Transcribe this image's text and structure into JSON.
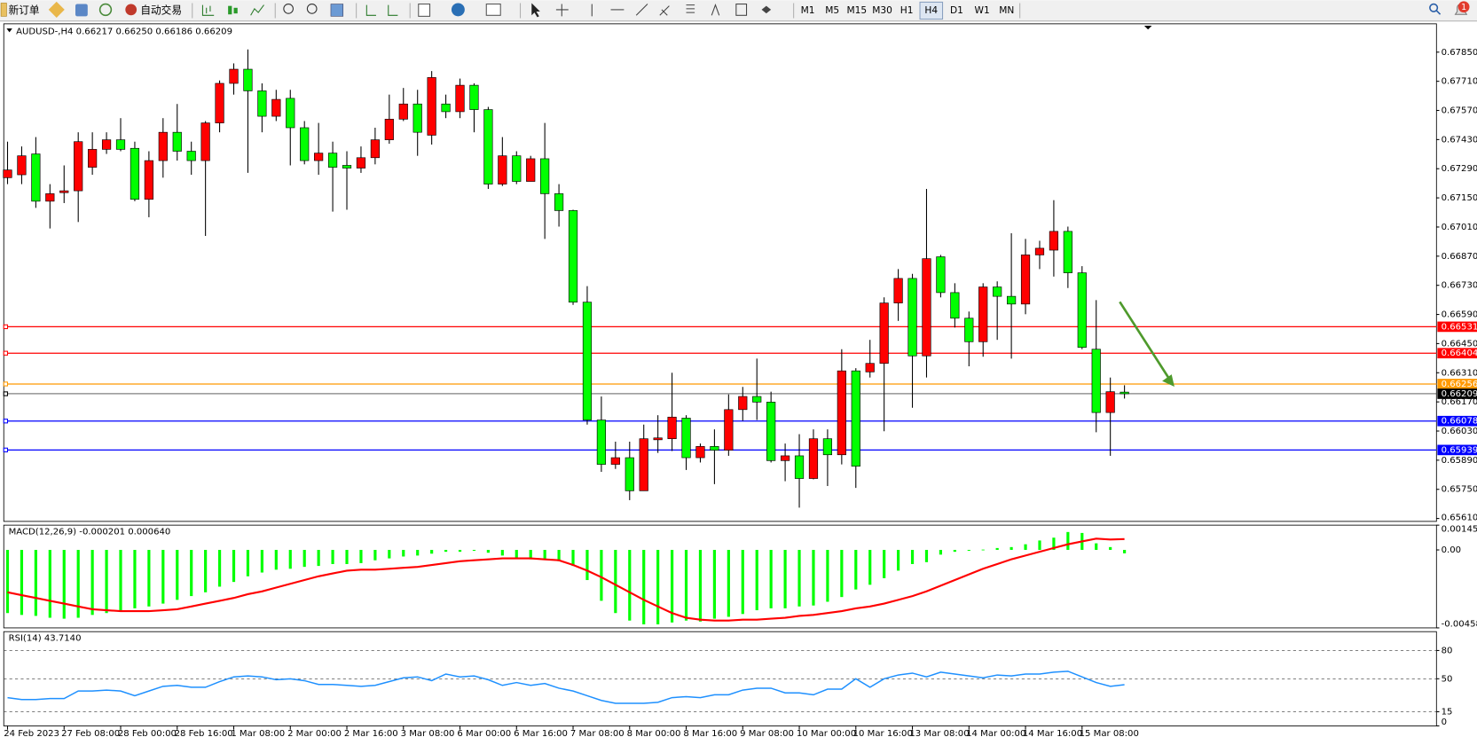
{
  "toolbar": {
    "new_order": "新订单",
    "auto_trading": "自动交易",
    "timeframes": [
      "M1",
      "M5",
      "M15",
      "M30",
      "H1",
      "H4",
      "D1",
      "W1",
      "MN"
    ],
    "selected_timeframe": "H4",
    "notifications": "1"
  },
  "chart_data": [
    {
      "type": "candlestick",
      "title": "AUDUSD-,H4 0.66217 0.66250 0.66186 0.66209",
      "categories": [
        "24 Feb 2023",
        null,
        null,
        null,
        "27 Feb 08:00",
        null,
        null,
        null,
        "28 Feb 00:00",
        null,
        null,
        null,
        "28 Feb 16:00",
        null,
        null,
        null,
        "1 Mar 08:00",
        null,
        null,
        null,
        "2 Mar 00:00",
        null,
        null,
        null,
        "2 Mar 16:00",
        null,
        null,
        null,
        "3 Mar 08:00",
        null,
        null,
        null,
        "6 Mar 00:00",
        null,
        null,
        null,
        "6 Mar 16:00",
        null,
        null,
        null,
        "7 Mar 08:00",
        null,
        null,
        null,
        "8 Mar 00:00",
        null,
        null,
        null,
        "8 Mar 16:00",
        null,
        null,
        null,
        "9 Mar 08:00",
        null,
        null,
        null,
        "10 Mar 00:00",
        null,
        null,
        null,
        "10 Mar 16:00",
        null,
        null,
        null,
        "13 Mar 08:00",
        null,
        null,
        null,
        "14 Mar 00:00",
        null,
        null,
        null,
        "14 Mar 16:00",
        null,
        null,
        null,
        "15 Mar 08:00",
        null,
        null,
        null
      ],
      "open": [
        0.67247,
        0.67261,
        0.67361,
        0.67134,
        0.67175,
        0.67184,
        0.67297,
        0.67383,
        0.67429,
        0.67388,
        0.67143,
        0.67329,
        0.67465,
        0.67374,
        0.67329,
        0.6751,
        0.677,
        0.67768,
        0.67664,
        0.67542,
        0.67628,
        0.67487,
        0.67329,
        0.67365,
        0.67306,
        0.67293,
        0.67343,
        0.67429,
        0.67528,
        0.67601,
        0.67451,
        0.67601,
        0.67564,
        0.67691,
        0.67574,
        0.67216,
        0.67352,
        0.67229,
        0.67338,
        0.6717,
        0.67089,
        0.66649,
        0.66083,
        0.6587,
        0.65902,
        0.65743,
        0.65988,
        0.65993,
        0.66092,
        0.65902,
        0.65956,
        0.65938,
        0.66133,
        0.66196,
        0.66169,
        0.65888,
        0.65911,
        0.65802,
        0.65993,
        0.65916,
        0.66319,
        0.66314,
        0.66355,
        0.66645,
        0.66763,
        0.66391,
        0.66867,
        0.66695,
        0.66572,
        0.66459,
        0.66722,
        0.66677,
        0.6664,
        0.66876,
        0.66899,
        0.66989,
        0.6679,
        0.66423,
        0.66119,
        0.66217
      ],
      "high": [
        0.6742,
        0.67397,
        0.67442,
        0.67216,
        0.67306,
        0.67465,
        0.67465,
        0.67465,
        0.67533,
        0.6742,
        0.67374,
        0.67533,
        0.67601,
        0.6742,
        0.67519,
        0.67714,
        0.67796,
        0.67863,
        0.677,
        0.67669,
        0.67669,
        0.67519,
        0.6751,
        0.6742,
        0.67374,
        0.67397,
        0.67487,
        0.67646,
        0.67678,
        0.67669,
        0.67759,
        0.67646,
        0.67723,
        0.677,
        0.67587,
        0.67442,
        0.67374,
        0.67352,
        0.6751,
        0.67216,
        0.67093,
        0.66726,
        0.66196,
        0.65979,
        0.65979,
        0.66061,
        0.66106,
        0.6631,
        0.66106,
        0.6597,
        0.66038,
        0.66206,
        0.66242,
        0.66378,
        0.66219,
        0.6597,
        0.66015,
        0.66038,
        0.66038,
        0.66423,
        0.66332,
        0.66468,
        0.66672,
        0.66808,
        0.66785,
        0.67193,
        0.66876,
        0.6674,
        0.66604,
        0.6674,
        0.66749,
        0.6698,
        0.66953,
        0.66944,
        0.67139,
        0.67012,
        0.66822,
        0.66659,
        0.66287,
        0.6625
      ],
      "low": [
        0.67216,
        0.67216,
        0.67102,
        0.67003,
        0.67125,
        0.67034,
        0.67261,
        0.67361,
        0.67374,
        0.67134,
        0.67057,
        0.67247,
        0.67329,
        0.67261,
        0.66967,
        0.67465,
        0.67646,
        0.6727,
        0.67465,
        0.67519,
        0.67306,
        0.67311,
        0.67261,
        0.67084,
        0.67093,
        0.6727,
        0.67311,
        0.6741,
        0.67519,
        0.67352,
        0.67406,
        0.67533,
        0.67533,
        0.67465,
        0.67193,
        0.67207,
        0.67216,
        0.67229,
        0.66953,
        0.67012,
        0.66636,
        0.66061,
        0.65834,
        0.65848,
        0.65698,
        0.65743,
        0.65925,
        0.65934,
        0.65843,
        0.65879,
        0.65775,
        0.65911,
        0.66079,
        0.66083,
        0.65879,
        0.65789,
        0.65662,
        0.65798,
        0.65766,
        0.6587,
        0.65757,
        0.66287,
        0.66029,
        0.66559,
        0.66142,
        0.66287,
        0.66672,
        0.66527,
        0.66341,
        0.66387,
        0.66468,
        0.66378,
        0.66591,
        0.66808,
        0.66772,
        0.66717,
        0.66423,
        0.66024,
        0.65911,
        0.66186
      ],
      "close": [
        0.67284,
        0.67352,
        0.67134,
        0.6717,
        0.67184,
        0.6742,
        0.67383,
        0.67429,
        0.67383,
        0.67143,
        0.67329,
        0.67465,
        0.67374,
        0.67329,
        0.6751,
        0.677,
        0.67768,
        0.67664,
        0.67542,
        0.67623,
        0.67487,
        0.67329,
        0.67365,
        0.67297,
        0.67293,
        0.67343,
        0.67429,
        0.67528,
        0.67601,
        0.67465,
        0.67728,
        0.67564,
        0.67691,
        0.67574,
        0.67216,
        0.67352,
        0.67229,
        0.67338,
        0.6717,
        0.67089,
        0.66649,
        0.66083,
        0.6587,
        0.65902,
        0.65743,
        0.65993,
        0.65997,
        0.66097,
        0.65902,
        0.65956,
        0.65938,
        0.66133,
        0.66196,
        0.66169,
        0.65888,
        0.65911,
        0.65802,
        0.65993,
        0.65916,
        0.66319,
        0.65861,
        0.66355,
        0.66645,
        0.66763,
        0.66391,
        0.66858,
        0.66695,
        0.66572,
        0.66459,
        0.66722,
        0.66677,
        0.6664,
        0.66876,
        0.66908,
        0.66989,
        0.6679,
        0.66432,
        0.66119,
        0.66219,
        0.66209
      ],
      "up_color": "#ff0000",
      "down_color": "#00ff00",
      "ylim": [
        0.65596,
        0.67986
      ],
      "yticks": [
        {
          "value": 0.6785,
          "label": "0.67850"
        },
        {
          "value": 0.6771,
          "label": "0.67710"
        },
        {
          "value": 0.6757,
          "label": "0.67570"
        },
        {
          "value": 0.6743,
          "label": "0.67430"
        },
        {
          "value": 0.6729,
          "label": "0.67290"
        },
        {
          "value": 0.6715,
          "label": "0.67150"
        },
        {
          "value": 0.6701,
          "label": "0.67010"
        },
        {
          "value": 0.6687,
          "label": "0.66870"
        },
        {
          "value": 0.6673,
          "label": "0.66730"
        },
        {
          "value": 0.6659,
          "label": "0.66590"
        },
        {
          "value": 0.6645,
          "label": "0.66450"
        },
        {
          "value": 0.6631,
          "label": "0.66310"
        },
        {
          "value": 0.6617,
          "label": "0.66170"
        },
        {
          "value": 0.6603,
          "label": "0.66030"
        },
        {
          "value": 0.6589,
          "label": "0.65890"
        },
        {
          "value": 0.6575,
          "label": "0.65750"
        },
        {
          "value": 0.6561,
          "label": "0.65610"
        }
      ],
      "hlines": [
        {
          "value": 0.66531,
          "color": "#ff0000"
        },
        {
          "value": 0.66404,
          "color": "#ff0000"
        },
        {
          "value": 0.66256,
          "color": "#ff9900"
        },
        {
          "value": 0.66209,
          "color": "#000000"
        },
        {
          "value": 0.66078,
          "color": "#0000ff"
        },
        {
          "value": 0.65939,
          "color": "#0000ff"
        }
      ]
    },
    {
      "type": "macd",
      "title": "MACD(12,26,9) -0.000201 0.000640",
      "values": [
        -0.003713,
        -0.003823,
        -0.003879,
        -0.00399,
        -0.004045,
        -0.00399,
        -0.003823,
        -0.003713,
        -0.003546,
        -0.003435,
        -0.003325,
        -0.003158,
        -0.002937,
        -0.002715,
        -0.002493,
        -0.002161,
        -0.001884,
        -0.001551,
        -0.00133,
        -0.001164,
        -0.001108,
        -0.000997,
        -0.000942,
        -0.000831,
        -0.000831,
        -0.000776,
        -0.00061,
        -0.000499,
        -0.000388,
        -0.000332,
        -0.000222,
        -0.000111,
        -0.000111,
        -5.5e-05,
        -0.000166,
        -0.000332,
        -0.000499,
        -0.000554,
        -0.000554,
        -0.000665,
        -0.000942,
        -0.001773,
        -0.002992,
        -0.003713,
        -0.004156,
        -0.004377,
        -0.004377,
        -0.004267,
        -0.004156,
        -0.004211,
        -0.004045,
        -0.003934,
        -0.003768,
        -0.003546,
        -0.003435,
        -0.003435,
        -0.003325,
        -0.003269,
        -0.003048,
        -0.002771,
        -0.002327,
        -0.00205,
        -0.001662,
        -0.001219,
        -0.000831,
        -0.00072,
        -0.000277,
        -0.000111,
        -5.5e-05,
        2e-05,
        0.000111,
        0.000166,
        0.000332,
        0.000554,
        0.00072,
        0.001053,
        0.000997,
        0.000388,
        0.000166,
        -0.000201
      ],
      "color": "#00ff00",
      "signal": [
        -0.002493,
        -0.00266,
        -0.002826,
        -0.002992,
        -0.003158,
        -0.003325,
        -0.003491,
        -0.003546,
        -0.003602,
        -0.003602,
        -0.003602,
        -0.003546,
        -0.003491,
        -0.003325,
        -0.003158,
        -0.002992,
        -0.002826,
        -0.002604,
        -0.002438,
        -0.002216,
        -0.001995,
        -0.001773,
        -0.001551,
        -0.001385,
        -0.001219,
        -0.001164,
        -0.001164,
        -0.001108,
        -0.001053,
        -0.000997,
        -0.000887,
        -0.000776,
        -0.000665,
        -0.00061,
        -0.000554,
        -0.000499,
        -0.000499,
        -0.000499,
        -0.000554,
        -0.00061,
        -0.000887,
        -0.001219,
        -0.001607,
        -0.00205,
        -0.002493,
        -0.002937,
        -0.003325,
        -0.003713,
        -0.00399,
        -0.0041,
        -0.004156,
        -0.004156,
        -0.0041,
        -0.0041,
        -0.004045,
        -0.00399,
        -0.003879,
        -0.003823,
        -0.003713,
        -0.003602,
        -0.003435,
        -0.003325,
        -0.003158,
        -0.002937,
        -0.002715,
        -0.002438,
        -0.002106,
        -0.001773,
        -0.001441,
        -0.001108,
        -0.000831,
        -0.000554,
        -0.000332,
        -0.000111,
        0.000111,
        0.000332,
        0.000499,
        0.000665,
        0.00061,
        0.00064
      ],
      "signal_color": "#ff0000",
      "ylim": [
        -0.004585,
        0.001455
      ],
      "yticks": [
        0.001455,
        {
          "value": 0,
          "label": "0.00"
        },
        -0.004585
      ]
    },
    {
      "type": "line",
      "title": "RSI(14) 43.7140",
      "values": [
        30,
        28,
        28,
        29,
        29,
        37,
        37,
        38,
        37,
        32,
        37,
        42,
        43,
        41,
        41,
        47,
        52,
        53,
        52,
        49,
        50,
        48,
        44,
        44,
        43,
        42,
        43,
        47,
        51,
        52,
        48,
        55,
        52,
        53,
        49,
        43,
        46,
        43,
        45,
        40,
        37,
        32,
        27,
        24,
        24,
        24,
        25,
        30,
        31,
        30,
        33,
        33,
        38,
        40,
        40,
        35,
        35,
        33,
        39,
        39,
        50,
        41,
        50,
        54,
        56,
        52,
        57,
        55,
        53,
        51,
        54,
        53,
        55,
        55,
        57,
        58,
        52,
        46,
        42,
        43.714
      ],
      "color": "#1e90ff",
      "ylim": [
        0,
        100
      ],
      "yticks": [
        80,
        50,
        15,
        0
      ]
    }
  ]
}
